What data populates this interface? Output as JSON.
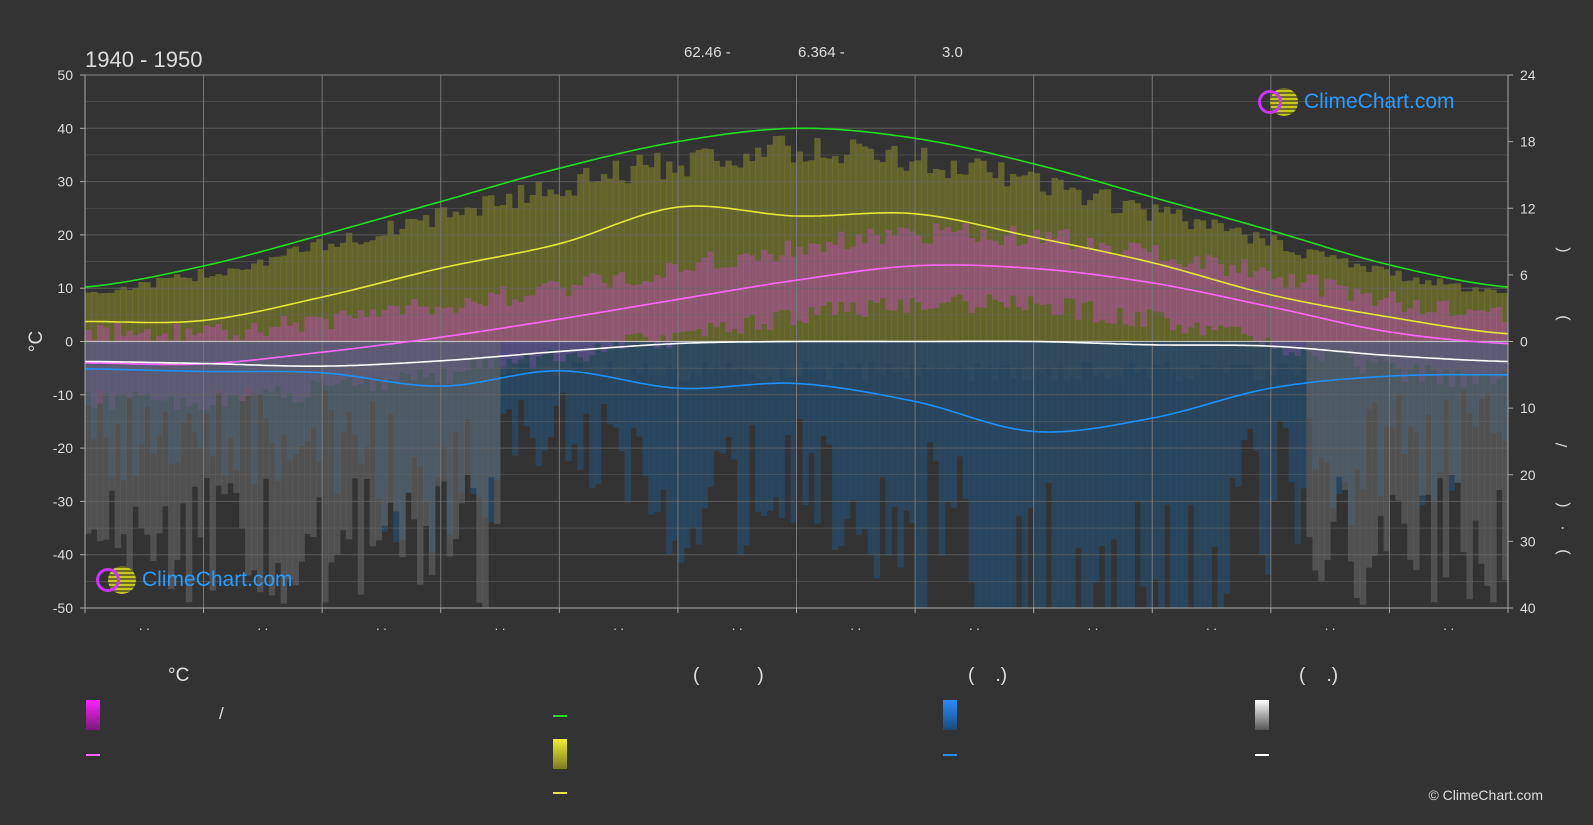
{
  "header": {
    "period": "1940 - 1950",
    "top_values": [
      "62.46 -",
      "6.364 -",
      "3.0"
    ]
  },
  "axes": {
    "left_unit": "°C",
    "left_ticks": [
      "50",
      "40",
      "30",
      "20",
      "10",
      "0",
      "-10",
      "-20",
      "-30",
      "-40",
      "-50"
    ],
    "right_top_ticks": [
      "24",
      "18",
      "12",
      "6",
      "0"
    ],
    "right_bottom_ticks": [
      "10",
      "20",
      "30",
      "40"
    ],
    "right_label_glyphs": [
      "(",
      ")",
      "/",
      "(",
      "·",
      ")"
    ],
    "month_tick_text": ". ."
  },
  "logo_text": "ClimeChart.com",
  "copyright": "© ClimeChart.com",
  "legend": {
    "col1_header": "°C",
    "col1_item1_text": "/",
    "col2_header": "(           )",
    "col3_header": "(    .)",
    "col4_header": "(    .)"
  },
  "colors": {
    "background": "#333333",
    "daylight": "#22dd22",
    "sunshine": "#e6e63a",
    "temperature": "#ff66ff",
    "precipitation": "#1e90ff",
    "snow": "#ffffff"
  },
  "chart_data": {
    "type": "line",
    "title": "1940 - 1950",
    "ylabel": "°C",
    "ylim": [
      -50,
      50
    ],
    "y2lim_top": [
      0,
      24
    ],
    "y2lim_bottom": [
      0,
      40
    ],
    "x": [
      0,
      1,
      2,
      3,
      4,
      5,
      6,
      7,
      8,
      9,
      10,
      11,
      12
    ],
    "series": [
      {
        "key": "daylight",
        "axis": "hours",
        "values": [
          4.9,
          6.8,
          9.6,
          12.6,
          15.6,
          18.0,
          19.2,
          18.3,
          16.0,
          13.0,
          10.0,
          6.9,
          4.9
        ]
      },
      {
        "key": "sunshine",
        "axis": "hours",
        "values": [
          1.8,
          1.9,
          4.0,
          6.6,
          8.8,
          12.1,
          11.3,
          11.5,
          9.4,
          7.1,
          4.2,
          2.2,
          0.7
        ]
      },
      {
        "key": "temperature",
        "axis": "celsius",
        "values": [
          -4.0,
          -4.2,
          -2.0,
          0.8,
          4.2,
          7.9,
          11.5,
          14.2,
          13.7,
          11.0,
          6.5,
          1.8,
          -0.4
        ]
      },
      {
        "key": "snow",
        "axis": "mm",
        "values": [
          3.0,
          3.3,
          3.7,
          2.9,
          1.5,
          0.3,
          0.0,
          0.0,
          0.0,
          0.5,
          0.7,
          2.1,
          3.0
        ]
      },
      {
        "key": "precipitation",
        "axis": "mm",
        "values": [
          4.1,
          4.5,
          4.7,
          6.7,
          4.4,
          7.0,
          6.3,
          9.0,
          13.5,
          11.5,
          7.0,
          5.2,
          5.0
        ]
      }
    ]
  }
}
